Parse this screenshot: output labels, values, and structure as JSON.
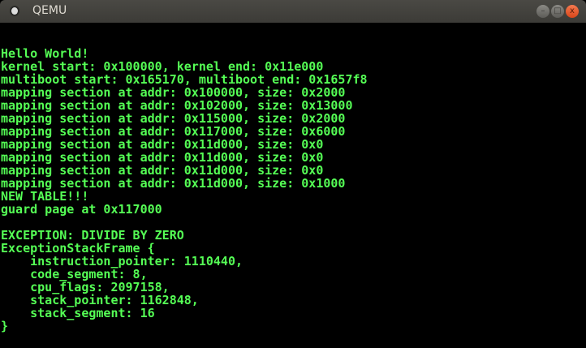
{
  "window": {
    "title": "QEMU",
    "buttons": {
      "minimize": "–",
      "maximize": "□",
      "close": "x"
    }
  },
  "colors": {
    "console_text": "#55ff55",
    "background": "#000000",
    "close_button": "#e95420"
  },
  "console": {
    "lines": [
      "Hello World!",
      "kernel start: 0x100000, kernel end: 0x11e000",
      "multiboot start: 0x165170, multiboot end: 0x1657f8",
      "mapping section at addr: 0x100000, size: 0x2000",
      "mapping section at addr: 0x102000, size: 0x13000",
      "mapping section at addr: 0x115000, size: 0x2000",
      "mapping section at addr: 0x117000, size: 0x6000",
      "mapping section at addr: 0x11d000, size: 0x0",
      "mapping section at addr: 0x11d000, size: 0x0",
      "mapping section at addr: 0x11d000, size: 0x0",
      "mapping section at addr: 0x11d000, size: 0x1000",
      "NEW TABLE!!!",
      "guard page at 0x117000",
      "",
      "EXCEPTION: DIVIDE BY ZERO",
      "ExceptionStackFrame {",
      "    instruction_pointer: 1110440,",
      "    code_segment: 8,",
      "    cpu_flags: 2097158,",
      "    stack_pointer: 1162848,",
      "    stack_segment: 16",
      "}"
    ]
  }
}
